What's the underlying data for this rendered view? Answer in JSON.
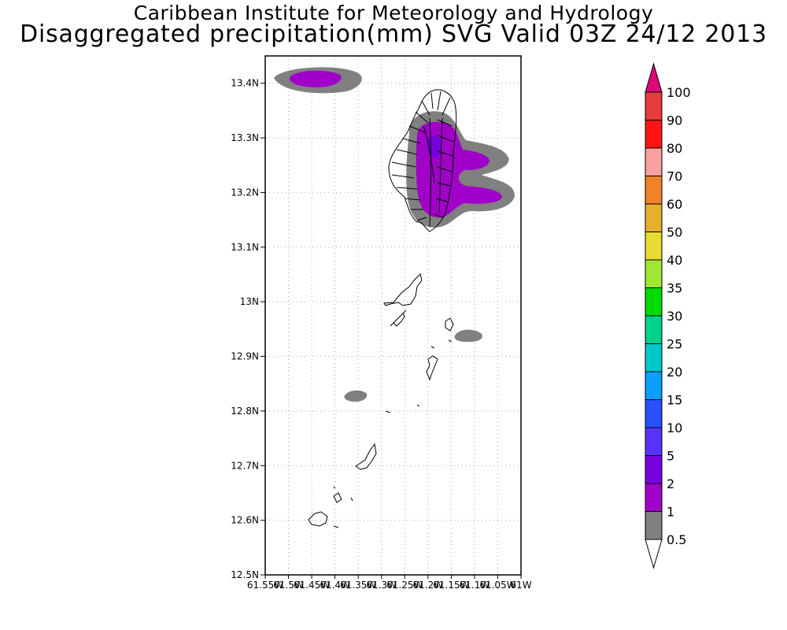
{
  "titles": {
    "line1": "Caribbean Institute for Meteorology and Hydrology",
    "line2": "Disaggregated precipitation(mm) SVG Valid 03Z 24/12 2013"
  },
  "map": {
    "region": "St. Vincent and the Grenadines",
    "lat_range": [
      12.5,
      13.45
    ],
    "lon_range": [
      -61.55,
      -61.0
    ],
    "lat_ticks": [
      "13.4N",
      "13.3N",
      "13.2N",
      "13.1N",
      "13N",
      "12.9N",
      "12.8N",
      "12.7N",
      "12.6N",
      "12.5N"
    ],
    "lon_ticks": [
      "61.55W",
      "61.5W",
      "61.45W",
      "61.4W",
      "61.35W",
      "61.3W",
      "61.25W",
      "61.2W",
      "61.15W",
      "61.1W",
      "61.05W",
      "61W"
    ],
    "grid": true
  },
  "colorbar": {
    "levels": [
      "0.5",
      "1",
      "2",
      "5",
      "10",
      "15",
      "20",
      "25",
      "30",
      "35",
      "40",
      "50",
      "60",
      "70",
      "80",
      "90",
      "100"
    ],
    "colors": [
      "#808080",
      "#a000c8",
      "#7800dc",
      "#5a32ff",
      "#2850ff",
      "#0aa0ff",
      "#00c8c8",
      "#00d28c",
      "#00dc00",
      "#a0e632",
      "#e6dc32",
      "#e6af2d",
      "#f08228",
      "#faa0a0",
      "#ff1414",
      "#e63c3c"
    ],
    "under_color": "#ffffff",
    "over_color": "#dc0a78"
  },
  "colors": {
    "coast": "#000000",
    "land_fill": "#ffffff",
    "grid": "#aaaaaa"
  }
}
